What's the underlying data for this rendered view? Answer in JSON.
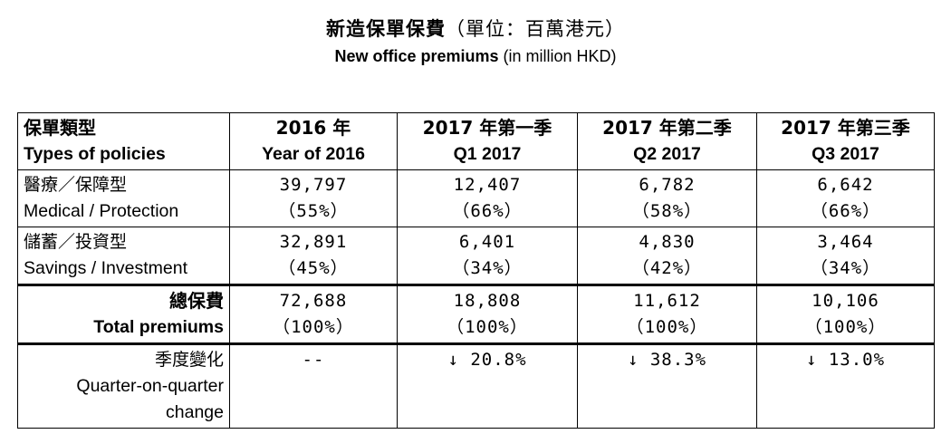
{
  "title_zh": "新造保單保費",
  "title_zh_unit": "（單位：百萬港元）",
  "title_en_bold": "New office premiums",
  "title_en_unit": "(in million HKD)",
  "columns": [
    {
      "zh": "保單類型",
      "en": "Types of policies"
    },
    {
      "zh": "2016 年",
      "en": "Year of 2016"
    },
    {
      "zh": "2017 年第一季",
      "en": "Q1 2017"
    },
    {
      "zh": "2017 年第二季",
      "en": "Q2 2017"
    },
    {
      "zh": "2017 年第三季",
      "en": "Q3 2017"
    }
  ],
  "rows": [
    {
      "zh": "醫療／保障型",
      "en": "Medical / Protection",
      "values": [
        {
          "v": "39,797",
          "p": "（55%）"
        },
        {
          "v": "12,407",
          "p": "（66%）"
        },
        {
          "v": "6,782",
          "p": "（58%）"
        },
        {
          "v": "6,642",
          "p": "（66%）"
        }
      ]
    },
    {
      "zh": "儲蓄／投資型",
      "en": "Savings / Investment",
      "values": [
        {
          "v": "32,891",
          "p": "（45%）"
        },
        {
          "v": "6,401",
          "p": "（34%）"
        },
        {
          "v": "4,830",
          "p": "（42%）"
        },
        {
          "v": "3,464",
          "p": "（34%）"
        }
      ]
    },
    {
      "zh": "總保費",
      "en": "Total premiums",
      "values": [
        {
          "v": "72,688",
          "p": "（100%）"
        },
        {
          "v": "18,808",
          "p": "（100%）"
        },
        {
          "v": "11,612",
          "p": "（100%）"
        },
        {
          "v": "10,106",
          "p": "（100%）"
        }
      ]
    }
  ],
  "qoq": {
    "zh": "季度變化",
    "en_line1": "Quarter-on-quarter",
    "en_line2": "change",
    "values": [
      "--",
      "↓ 20.8%",
      "↓ 38.3%",
      "↓ 13.0%"
    ]
  }
}
